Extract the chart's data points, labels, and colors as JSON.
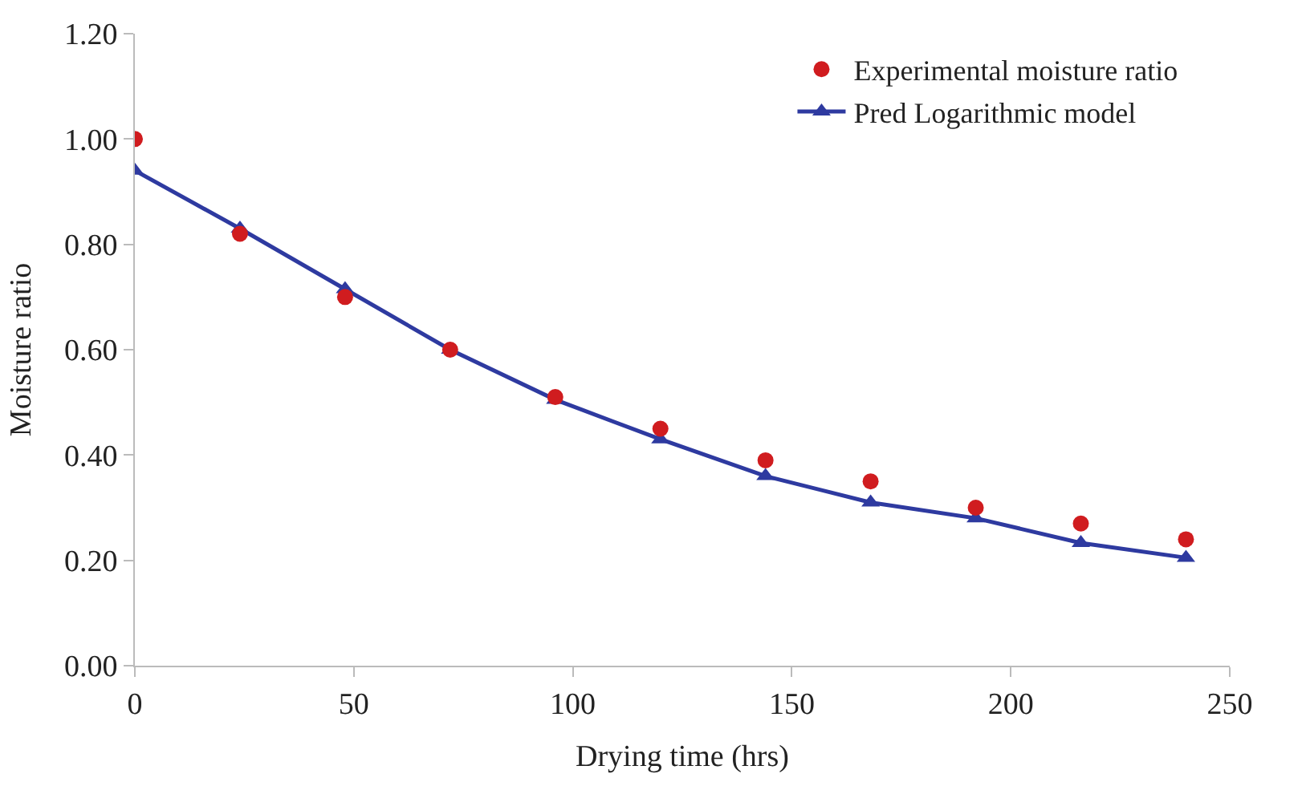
{
  "chart_data": {
    "type": "line",
    "xlabel": "Drying time (hrs)",
    "ylabel": "Moisture ratio",
    "xlim": [
      0,
      250
    ],
    "xticks": [
      0,
      50,
      100,
      150,
      200,
      250
    ],
    "ylim": [
      0,
      1.2
    ],
    "yticks": [
      {
        "value": 0,
        "label": "0.00"
      },
      {
        "value": 0.2,
        "label": "0.20"
      },
      {
        "value": 0.4,
        "label": "0.40"
      },
      {
        "value": 0.6,
        "label": "0.60"
      },
      {
        "value": 0.8,
        "label": "0.80"
      },
      {
        "value": 1.0,
        "label": "1.00"
      },
      {
        "value": 1.2,
        "label": "1.20"
      }
    ],
    "legend": "top right",
    "x": [
      0,
      24,
      48,
      72,
      96,
      120,
      144,
      168,
      192,
      216,
      240
    ],
    "series": [
      {
        "name": "Experimental moisture ratio",
        "type": "scatter",
        "marker": "circle",
        "color": "#d01c1f",
        "values": [
          1.0,
          0.82,
          0.7,
          0.6,
          0.51,
          0.45,
          0.39,
          0.35,
          0.3,
          0.27,
          0.24
        ]
      },
      {
        "name": "Pred Logarithmic model",
        "marker": "triangle",
        "line_style": "solid",
        "color": "#2e3aa0",
        "values": [
          0.94,
          0.83,
          0.715,
          0.6,
          0.505,
          0.43,
          0.36,
          0.31,
          0.28,
          0.233,
          0.205
        ]
      }
    ]
  }
}
